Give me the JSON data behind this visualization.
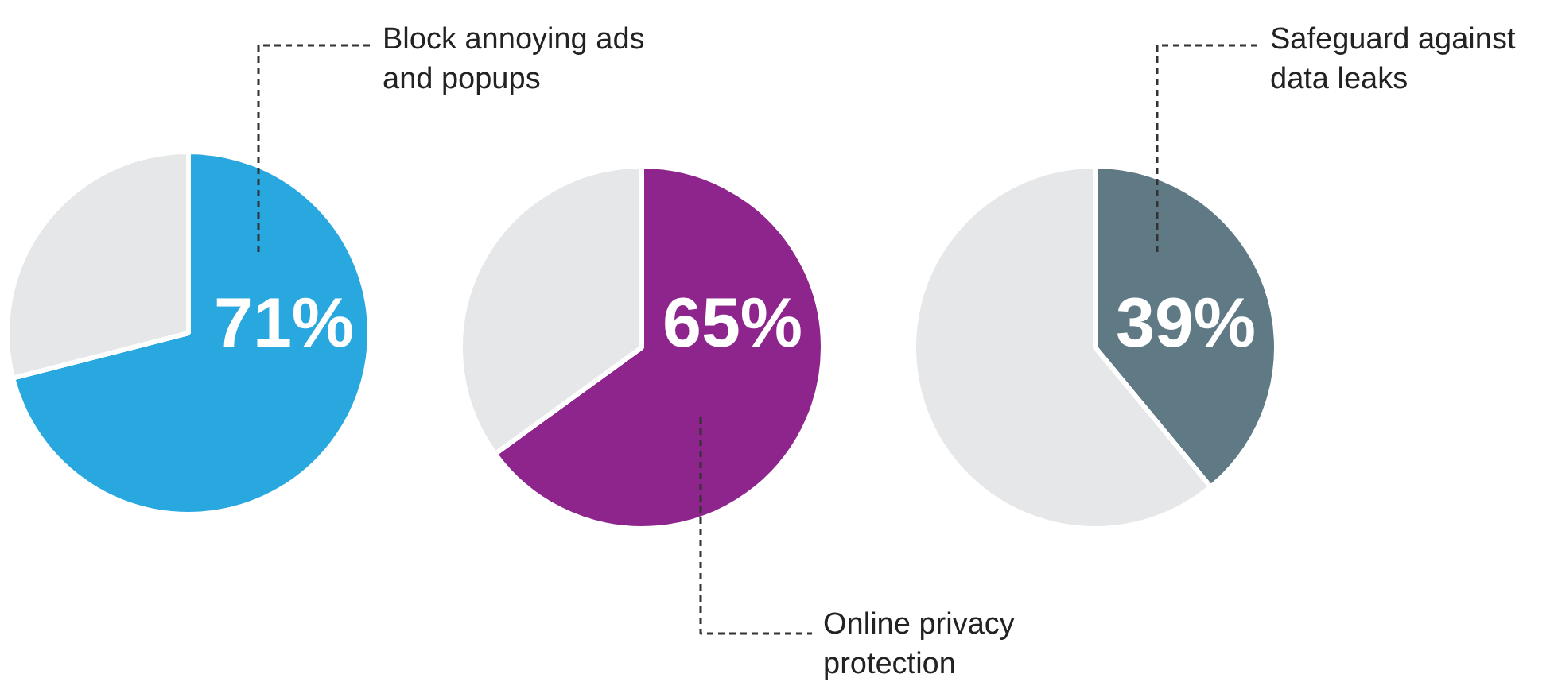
{
  "chart_data": [
    {
      "type": "pie",
      "categories": [
        "Block annoying ads and popups",
        null
      ],
      "values": [
        71,
        29
      ],
      "colors": [
        "#29a8e0",
        "#e6e7e9"
      ],
      "value_labels": [
        "71%",
        null
      ]
    },
    {
      "type": "pie",
      "categories": [
        "Online privacy protection",
        null
      ],
      "values": [
        65,
        35
      ],
      "colors": [
        "#8d258c",
        "#e6e7e9"
      ],
      "value_labels": [
        "65%",
        null
      ]
    },
    {
      "type": "pie",
      "categories": [
        "Safeguard against data leaks",
        null
      ],
      "values": [
        39,
        61
      ],
      "colors": [
        "#5f7a84",
        "#e6e7e9"
      ],
      "value_labels": [
        "39%",
        null
      ]
    }
  ]
}
